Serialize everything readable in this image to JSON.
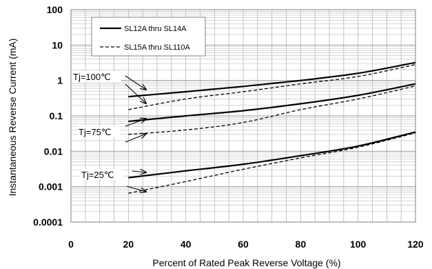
{
  "chart_data": {
    "type": "line",
    "title": "",
    "xlabel": "Percent of  Rated Peak Reverse Voltage (%)",
    "ylabel": "Instantaneous Reverse Current (mA)",
    "x_ticks": [
      "0",
      "20",
      "40",
      "60",
      "80",
      "100",
      "120"
    ],
    "y_ticks": [
      "0.0001",
      "0.001",
      "0.01",
      "0.1",
      "1",
      "10",
      "100"
    ],
    "xlim": [
      0,
      120
    ],
    "ylim": [
      0.0001,
      100
    ],
    "y_scale": "log",
    "grid": true,
    "legend_position": "top-left",
    "legend": [
      {
        "label": "SL12A thru SL14A",
        "style": "solid"
      },
      {
        "label": "SL15A thru SL110A",
        "style": "dashed"
      }
    ],
    "annotations": [
      "Tj=100℃",
      "Tj=75℃",
      "Tj=25℃"
    ],
    "series": [
      {
        "group": "SL12A thru SL14A",
        "temp": "Tj=100℃",
        "style": "solid",
        "x": [
          20,
          40,
          60,
          80,
          100,
          120
        ],
        "y": [
          0.35,
          0.48,
          0.68,
          1.0,
          1.6,
          3.2
        ]
      },
      {
        "group": "SL15A thru SL110A",
        "temp": "Tj=100℃",
        "style": "dashed",
        "x": [
          20,
          40,
          60,
          80,
          100,
          120
        ],
        "y": [
          0.15,
          0.3,
          0.48,
          0.8,
          1.3,
          2.8
        ]
      },
      {
        "group": "SL12A thru SL14A",
        "temp": "Tj=75℃",
        "style": "solid",
        "x": [
          20,
          40,
          60,
          80,
          100,
          120
        ],
        "y": [
          0.07,
          0.1,
          0.14,
          0.22,
          0.38,
          0.8
        ]
      },
      {
        "group": "SL15A thru SL110A",
        "temp": "Tj=75℃",
        "style": "dashed",
        "x": [
          20,
          40,
          60,
          80,
          100,
          120
        ],
        "y": [
          0.03,
          0.04,
          0.065,
          0.15,
          0.3,
          0.7
        ]
      },
      {
        "group": "SL12A thru SL14A",
        "temp": "Tj=25℃",
        "style": "solid",
        "x": [
          20,
          40,
          60,
          80,
          100,
          120
        ],
        "y": [
          0.0018,
          0.0028,
          0.0043,
          0.0075,
          0.014,
          0.035
        ]
      },
      {
        "group": "SL15A thru SL110A",
        "temp": "Tj=25℃",
        "style": "dashed",
        "x": [
          20,
          40,
          60,
          80,
          100,
          120
        ],
        "y": [
          0.00065,
          0.0014,
          0.0031,
          0.0065,
          0.013,
          0.033
        ]
      }
    ]
  }
}
